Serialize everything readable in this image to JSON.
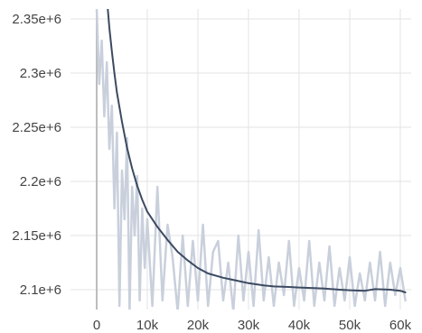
{
  "chart_data": {
    "type": "line",
    "title": "",
    "xlabel": "",
    "ylabel": "",
    "xlim": [
      -5000,
      62000
    ],
    "ylim": [
      2080000,
      2360000
    ],
    "x_ticks": [
      0,
      10000,
      20000,
      30000,
      40000,
      50000,
      60000
    ],
    "x_tick_labels": [
      "0",
      "10k",
      "20k",
      "30k",
      "40k",
      "50k",
      "60k"
    ],
    "y_ticks": [
      2350000,
      2300000,
      2250000,
      2200000,
      2150000,
      2100000
    ],
    "y_tick_labels": [
      "2.35e+6",
      "2.3e+6",
      "2.25e+6",
      "2.2e+6",
      "2.15e+6",
      "2.1e+6"
    ],
    "grid": true,
    "series": [
      {
        "role": "smoothed",
        "color": "#3c4a61",
        "x": [
          2000,
          2500,
          3000,
          3500,
          4000,
          5000,
          6000,
          7000,
          8000,
          9000,
          10000,
          12000,
          14000,
          16000,
          18000,
          20000,
          22000,
          25000,
          28000,
          30000,
          33000,
          35000,
          38000,
          40000,
          43000,
          45000,
          48000,
          50000,
          53000,
          55000,
          58000,
          60000,
          61000
        ],
        "values": [
          2370000,
          2342000,
          2320000,
          2300000,
          2282000,
          2255000,
          2231000,
          2212000,
          2196000,
          2183000,
          2172000,
          2158000,
          2146000,
          2135000,
          2127000,
          2120000,
          2115000,
          2111000,
          2108000,
          2106000,
          2104000,
          2103000,
          2102500,
          2102000,
          2101500,
          2101000,
          2100000,
          2099500,
          2099000,
          2100500,
          2100000,
          2099000,
          2097500
        ]
      },
      {
        "role": "raw",
        "color": "#c9d0dc",
        "x": [
          0,
          500,
          1000,
          1500,
          2000,
          2500,
          3000,
          3500,
          4000,
          4500,
          5000,
          5500,
          6000,
          6500,
          7000,
          7500,
          8000,
          8500,
          9000,
          9500,
          10000,
          11000,
          12000,
          13000,
          14000,
          15000,
          16000,
          17000,
          18000,
          19000,
          20000,
          21000,
          22000,
          23000,
          24000,
          25000,
          26000,
          27000,
          28000,
          29000,
          30000,
          31000,
          32000,
          33000,
          34000,
          35000,
          36000,
          37000,
          38000,
          39000,
          40000,
          41000,
          42000,
          43000,
          44000,
          45000,
          46000,
          47000,
          48000,
          49000,
          50000,
          51000,
          52000,
          53000,
          54000,
          55000,
          56000,
          57000,
          58000,
          59000,
          60000,
          61000
        ],
        "values": [
          2360000,
          2290000,
          2330000,
          2260000,
          2310000,
          2230000,
          2270000,
          2175000,
          2245000,
          2085000,
          2210000,
          2165000,
          2240000,
          2080000,
          2195000,
          2150000,
          2205000,
          2090000,
          2175000,
          2120000,
          2165000,
          2085000,
          2195000,
          2090000,
          2160000,
          2130000,
          2080000,
          2150000,
          2085000,
          2145000,
          2090000,
          2160000,
          2085000,
          2135000,
          2145000,
          2090000,
          2125000,
          2080000,
          2150000,
          2090000,
          2135000,
          2085000,
          2155000,
          2090000,
          2130000,
          2085000,
          2125000,
          2095000,
          2145000,
          2085000,
          2120000,
          2090000,
          2145000,
          2085000,
          2125000,
          2090000,
          2140000,
          2085000,
          2120000,
          2090000,
          2130000,
          2085000,
          2115000,
          2090000,
          2125000,
          2090000,
          2135000,
          2085000,
          2125000,
          2095000,
          2120000,
          2090000
        ]
      }
    ]
  }
}
